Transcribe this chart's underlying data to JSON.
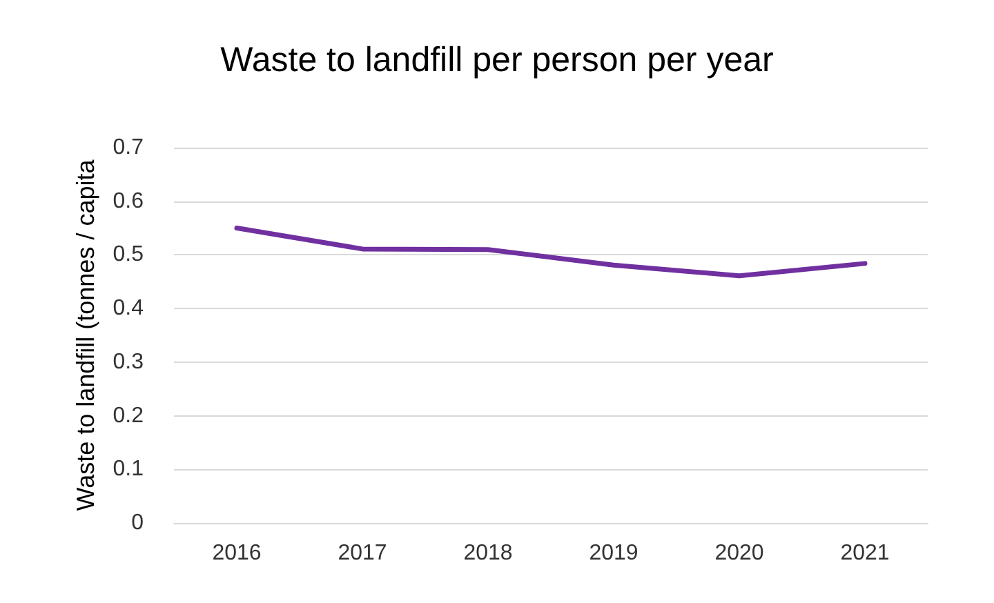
{
  "chart_data": {
    "type": "line",
    "title": "Waste to landfill per person per year",
    "ylabel": "Waste to landfill (tonnes / capita",
    "categories": [
      "2016",
      "2017",
      "2018",
      "2019",
      "2020",
      "2021"
    ],
    "series": [
      {
        "color": "#7030a0",
        "values": [
          0.55,
          0.511,
          0.51,
          0.481,
          0.461,
          0.484
        ]
      }
    ],
    "ylim": [
      0,
      0.7
    ],
    "yticks": [
      0,
      0.1,
      0.2,
      0.3,
      0.4,
      0.5,
      0.6,
      0.7
    ],
    "grid": "y",
    "marker": "none",
    "line_style": "solid"
  }
}
